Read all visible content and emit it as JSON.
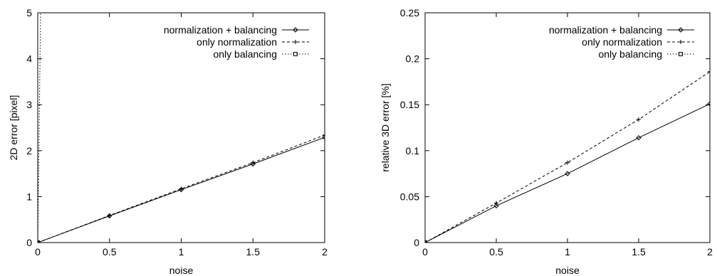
{
  "chart_data": [
    {
      "type": "line",
      "title": "",
      "xlabel": "noise",
      "ylabel": "2D error [pixel]",
      "xlim": [
        0,
        2
      ],
      "ylim": [
        0,
        5
      ],
      "xticks": [
        "0",
        "0.5",
        "1",
        "1.5",
        "2"
      ],
      "yticks": [
        "0",
        "1",
        "2",
        "3",
        "4",
        "5"
      ],
      "legend_position": "top-right",
      "series": [
        {
          "name": "normalization + balancing",
          "style": "solid",
          "marker": "diamond",
          "x": [
            0,
            0.5,
            1,
            1.5,
            2
          ],
          "y": [
            0,
            0.58,
            1.15,
            1.71,
            2.29
          ]
        },
        {
          "name": "only normalization",
          "style": "dashed",
          "marker": "plus",
          "x": [
            0,
            0.5,
            1,
            1.5,
            2
          ],
          "y": [
            0,
            0.59,
            1.17,
            1.74,
            2.34
          ]
        },
        {
          "name": "only balancing",
          "style": "dotted",
          "marker": "square",
          "x": [
            0,
            0.02
          ],
          "y": [
            0,
            5
          ]
        }
      ]
    },
    {
      "type": "line",
      "title": "",
      "xlabel": "noise",
      "ylabel": "relative 3D error [%]",
      "xlim": [
        0,
        2
      ],
      "ylim": [
        0,
        0.25
      ],
      "xticks": [
        "0",
        "0.5",
        "1",
        "1.5",
        "2"
      ],
      "yticks": [
        "0",
        "0.05",
        "0.1",
        "0.15",
        "0.2",
        "0.25"
      ],
      "legend_position": "top-right",
      "series": [
        {
          "name": "normalization + balancing",
          "style": "solid",
          "marker": "diamond",
          "x": [
            0,
            0.5,
            1,
            1.5,
            2
          ],
          "y": [
            0,
            0.04,
            0.075,
            0.114,
            0.151
          ]
        },
        {
          "name": "only normalization",
          "style": "dashed",
          "marker": "plus",
          "x": [
            0,
            0.5,
            1,
            1.5,
            2
          ],
          "y": [
            0,
            0.043,
            0.087,
            0.134,
            0.186
          ]
        },
        {
          "name": "only balancing",
          "style": "dotted",
          "marker": "square",
          "x": [
            0
          ],
          "y": [
            0
          ]
        }
      ]
    }
  ]
}
